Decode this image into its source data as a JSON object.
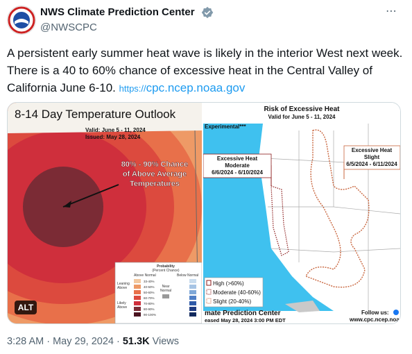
{
  "header": {
    "name": "NWS Climate Prediction Center",
    "handle": "@NWSCPC"
  },
  "tweet": {
    "text": "A persistent early summer heat wave is likely in the interior West next week. There is a 40 to 60% chance of excessive heat in the Central Valley of California June 6-10.",
    "link_prefix": "https://",
    "link": "cpc.ncep.noaa.gov"
  },
  "left_image": {
    "title": "8-14 Day Temperature Outlook",
    "valid": "Valid:  June 5 - 11, 2024",
    "issued": "Issued:  May 28, 2024",
    "annotation": [
      "80% - 90% Chance",
      "of Above Average",
      "Temperatures"
    ],
    "legend": {
      "title": "Probability",
      "subtitle": "(Percent Chance)",
      "above": "Above Normal",
      "below": "Below Normal",
      "leaning": [
        "Leaning",
        "Above"
      ],
      "likely": [
        "Likely",
        "Above"
      ],
      "near": [
        "Near",
        "Normal"
      ],
      "ranges": [
        "33-40%",
        "40-50%",
        "50-60%",
        "60-70%",
        "70-80%",
        "80-90%",
        "90-100%"
      ]
    },
    "alt": "ALT"
  },
  "right_image": {
    "title": "Risk of Excessive Heat",
    "valid": "Valid for June 5 - 11, 2024",
    "experimental": "Experimental***",
    "moderate": [
      "Excessive Heat",
      "Moderate",
      "6/6/2024 - 6/10/2024"
    ],
    "slight": [
      "Excessive Heat",
      "Slight",
      "6/5/2024 - 6/11/2024"
    ],
    "legend": [
      "High (>60%)",
      "Moderate (40-60%)",
      "Slight (20-40%)"
    ],
    "org": "mate Prediction Center",
    "released": "eased May 28, 2024 3:00 PM EDT",
    "follow": "Follow us:",
    "url": "www.cpc.ncep.noa"
  },
  "footer": {
    "time": "3:28 AM",
    "date": "May 29, 2024",
    "views": "51.3K",
    "views_label": "Views"
  }
}
